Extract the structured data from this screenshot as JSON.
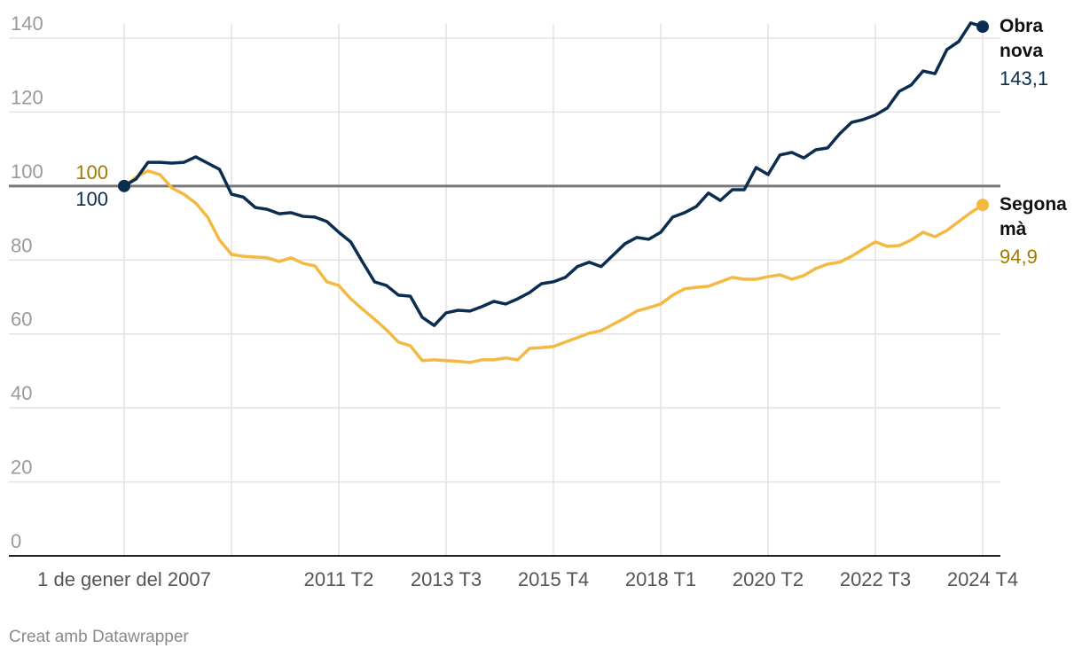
{
  "chart_data": {
    "type": "line",
    "categories": [
      "1 de gener del 2007",
      null,
      null,
      null,
      null,
      null,
      null,
      null,
      null,
      null,
      null,
      null,
      null,
      null,
      null,
      null,
      null,
      null,
      "2011 T2",
      null,
      null,
      null,
      null,
      null,
      null,
      null,
      null,
      "2013 T3",
      null,
      null,
      null,
      null,
      null,
      null,
      null,
      null,
      "2015 T4",
      null,
      null,
      null,
      null,
      null,
      null,
      null,
      null,
      "2018 T1",
      null,
      null,
      null,
      null,
      null,
      null,
      null,
      null,
      "2020 T2",
      null,
      null,
      null,
      null,
      null,
      null,
      null,
      null,
      "2022 T3",
      null,
      null,
      null,
      null,
      null,
      null,
      null,
      null,
      "2024 T4"
    ],
    "xticks": [
      0,
      9,
      18,
      27,
      36,
      45,
      54,
      63,
      72
    ],
    "series": [
      {
        "name": "Obra nova",
        "color": "#0b2d50",
        "label_color": "#0b2d50",
        "values": [
          100,
          101.9,
          106.4,
          106.4,
          106.2,
          106.4,
          107.9,
          106.2,
          104.5,
          97.8,
          97.0,
          94.2,
          93.7,
          92.5,
          92.8,
          91.8,
          91.6,
          90.4,
          87.5,
          84.9,
          79.4,
          74.1,
          73.1,
          70.5,
          70.2,
          64.5,
          62.3,
          65.7,
          66.4,
          66.2,
          67.4,
          68.8,
          68.1,
          69.5,
          71.2,
          73.6,
          74.1,
          75.3,
          78.2,
          79.4,
          78.2,
          81.3,
          84.4,
          86.1,
          85.6,
          87.5,
          91.6,
          92.8,
          94.5,
          98.1,
          96.1,
          99.0,
          99.0,
          105.0,
          103.1,
          108.4,
          109.1,
          107.6,
          109.8,
          110.3,
          114.1,
          117.2,
          118.0,
          119.2,
          121.1,
          125.6,
          127.3,
          131.1,
          130.4,
          136.9,
          139.1,
          144.1,
          143.1
        ],
        "value_labels": {
          "72": "143,1"
        }
      },
      {
        "name": "Segona mà",
        "color": "#f4b942",
        "label_color": "#a37a00",
        "values": [
          100,
          102.4,
          104.1,
          103.1,
          99.5,
          97.8,
          95.4,
          91.6,
          85.4,
          81.5,
          81.0,
          80.8,
          80.6,
          79.6,
          80.6,
          79.1,
          78.4,
          74.1,
          73.1,
          69.5,
          66.7,
          64.0,
          61.1,
          57.8,
          56.8,
          52.8,
          53.0,
          52.8,
          52.6,
          52.3,
          53.0,
          53.0,
          53.5,
          53.0,
          56.1,
          56.3,
          56.6,
          57.8,
          59.0,
          60.2,
          60.9,
          62.6,
          64.3,
          66.2,
          67.1,
          68.1,
          70.5,
          72.2,
          72.6,
          72.9,
          74.1,
          75.3,
          74.8,
          74.8,
          75.5,
          76.0,
          74.8,
          75.8,
          77.7,
          78.9,
          79.4,
          81.0,
          83.0,
          84.9,
          83.7,
          83.9,
          85.4,
          87.5,
          86.3,
          88.0,
          90.4,
          92.8,
          94.9
        ],
        "value_labels": {
          "72": "94,9"
        }
      }
    ],
    "ylim": [
      0,
      140
    ],
    "yticks": [
      0,
      20,
      40,
      60,
      80,
      100,
      120,
      140
    ],
    "grid": true,
    "reference_line": 100,
    "reference_color": "#777777",
    "credit": "Creat amb Datawrapper"
  }
}
